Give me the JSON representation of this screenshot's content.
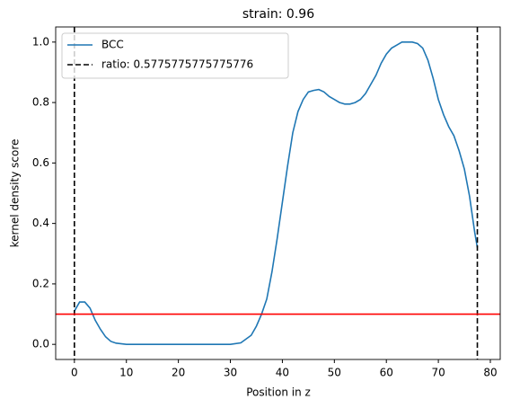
{
  "chart_data": {
    "type": "line",
    "title": "strain: 0.96",
    "xlabel": "Position in z",
    "ylabel": "kernel density score",
    "x": [
      0,
      1,
      2,
      3,
      4,
      5,
      6,
      7,
      8,
      10,
      12,
      15,
      20,
      25,
      30,
      32,
      34,
      35,
      36,
      37,
      38,
      39,
      40,
      41,
      42,
      43,
      44,
      45,
      46,
      47,
      48,
      49,
      50,
      51,
      52,
      53,
      54,
      55,
      56,
      57,
      58,
      59,
      60,
      61,
      62,
      63,
      64,
      65,
      66,
      67,
      68,
      69,
      70,
      71,
      72,
      73,
      74,
      75,
      76,
      77,
      77.5
    ],
    "series": [
      {
        "name": "BCC",
        "color": "#1f77b4",
        "values": [
          0.11,
          0.14,
          0.14,
          0.12,
          0.08,
          0.05,
          0.025,
          0.01,
          0.004,
          0.0,
          0.0,
          0.0,
          0.0,
          0.0,
          0.0,
          0.005,
          0.03,
          0.06,
          0.1,
          0.15,
          0.24,
          0.35,
          0.47,
          0.59,
          0.7,
          0.77,
          0.81,
          0.835,
          0.84,
          0.843,
          0.835,
          0.82,
          0.81,
          0.8,
          0.795,
          0.795,
          0.8,
          0.81,
          0.83,
          0.86,
          0.89,
          0.93,
          0.96,
          0.98,
          0.99,
          1.0,
          1.0,
          1.0,
          0.995,
          0.98,
          0.94,
          0.88,
          0.81,
          0.76,
          0.72,
          0.69,
          0.64,
          0.58,
          0.49,
          0.37,
          0.32
        ]
      }
    ],
    "vlines": {
      "name": "ratio: 0.5775775775775776",
      "color": "#000000",
      "x": [
        0,
        77.5
      ]
    },
    "hline": {
      "color": "#ff0000",
      "y": 0.1
    },
    "xlim": [
      -3.6,
      81.9
    ],
    "ylim": [
      -0.05,
      1.05
    ],
    "xticks": [
      0,
      10,
      20,
      30,
      40,
      50,
      60,
      70,
      80
    ],
    "yticks": [
      {
        "value": 0,
        "label": "0.0"
      },
      0.2,
      0.4,
      0.6,
      0.8,
      {
        "value": 1,
        "label": "1.0"
      }
    ],
    "legend": "upper left"
  }
}
